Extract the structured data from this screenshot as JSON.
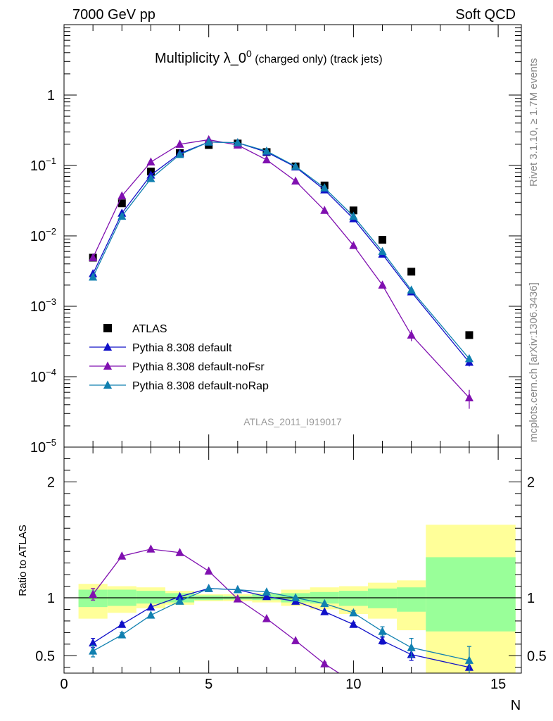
{
  "header": {
    "left": "7000 GeV pp",
    "right": "Soft QCD"
  },
  "side_text": {
    "rivet": "Rivet 3.1.10, ≥ 1.7M events",
    "mcplots": "mcplots.cern.ch [arXiv:1306.3436]"
  },
  "colors": {
    "atlas": "#000000",
    "default": "#1010c8",
    "noFsr": "#8010b0",
    "noRap": "#1080b0",
    "band_inner": "#99ff99",
    "band_outer": "#ffff99"
  },
  "chart_data": [
    {
      "type": "scatter",
      "title_main": "Multiplicity λ_0",
      "title_sup": "0",
      "title_rest": " (charged only) (track jets)",
      "watermark": "ATLAS_2011_I919017",
      "y_scale": "log",
      "ylim": [
        1e-05,
        10
      ],
      "xlim": [
        0,
        15.8
      ],
      "y_ticks": [
        {
          "value": 1e-05,
          "base": "10",
          "exp": "−5"
        },
        {
          "value": 0.0001,
          "base": "10",
          "exp": "−4"
        },
        {
          "value": 0.001,
          "base": "10",
          "exp": "−3"
        },
        {
          "value": 0.01,
          "base": "10",
          "exp": "−2"
        },
        {
          "value": 0.1,
          "base": "10",
          "exp": "−1"
        },
        {
          "value": 1,
          "base": "1",
          "exp": ""
        }
      ],
      "legend_position": "bottom-left",
      "series": [
        {
          "name": "ATLAS",
          "marker": "square",
          "color": "#000000",
          "x": [
            1,
            2,
            3,
            4,
            5,
            6,
            7,
            8,
            9,
            10,
            11,
            12,
            14
          ],
          "y": [
            0.0049,
            0.029,
            0.082,
            0.15,
            0.195,
            0.205,
            0.155,
            0.097,
            0.052,
            0.023,
            0.0088,
            0.0031,
            0.00039
          ]
        },
        {
          "name": "Pythia 8.308 default",
          "marker": "triangle",
          "color": "#1010c8",
          "x": [
            1,
            2,
            3,
            4,
            5,
            6,
            7,
            8,
            9,
            10,
            11,
            12,
            14
          ],
          "y": [
            0.0029,
            0.021,
            0.073,
            0.148,
            0.215,
            0.21,
            0.155,
            0.095,
            0.045,
            0.0175,
            0.0055,
            0.0016,
            0.00016
          ],
          "err": [
            0.0002,
            0.0008,
            0,
            0,
            0,
            0,
            0,
            0,
            0,
            0,
            0.0003,
            0.0001,
            2e-05
          ]
        },
        {
          "name": "Pythia 8.308 default-noFsr",
          "marker": "triangle",
          "color": "#8010b0",
          "x": [
            1,
            2,
            3,
            4,
            5,
            6,
            7,
            8,
            9,
            10,
            11,
            12,
            14
          ],
          "y": [
            0.0049,
            0.037,
            0.112,
            0.2,
            0.232,
            0.195,
            0.12,
            0.06,
            0.023,
            0.0073,
            0.002,
            0.00039,
            5e-05
          ],
          "err": [
            0.0003,
            0,
            0,
            0,
            0,
            0,
            0,
            0,
            0,
            0,
            0,
            7e-05,
            1.5e-05
          ]
        },
        {
          "name": "Pythia 8.308 default-noRap",
          "marker": "triangle",
          "color": "#1080b0",
          "x": [
            1,
            2,
            3,
            4,
            5,
            6,
            7,
            8,
            9,
            10,
            11,
            12,
            14
          ],
          "y": [
            0.0026,
            0.019,
            0.065,
            0.143,
            0.215,
            0.21,
            0.16,
            0.097,
            0.048,
            0.019,
            0.006,
            0.0017,
            0.00018
          ],
          "err": [
            0.0002,
            0.0008,
            0,
            0,
            0,
            0,
            0,
            0,
            0,
            0,
            0.0003,
            0.0001,
            2e-05
          ]
        }
      ]
    },
    {
      "type": "line",
      "ylabel": "Ratio to ATLAS",
      "xlabel": "N",
      "xlim": [
        0,
        15.8
      ],
      "ylim": [
        0.35,
        2.3
      ],
      "x_ticks": [
        0,
        5,
        10,
        15
      ],
      "y_ticks": [
        0.5,
        1,
        2
      ],
      "reference_line": 1,
      "bands": [
        {
          "x0": 0.5,
          "x1": 1.5,
          "inner": [
            0.92,
            1.07
          ],
          "outer": [
            0.82,
            1.12
          ]
        },
        {
          "x0": 1.5,
          "x1": 2.5,
          "inner": [
            0.93,
            1.07
          ],
          "outer": [
            0.87,
            1.1
          ]
        },
        {
          "x0": 2.5,
          "x1": 3.5,
          "inner": [
            0.95,
            1.06
          ],
          "outer": [
            0.91,
            1.09
          ]
        },
        {
          "x0": 3.5,
          "x1": 4.5,
          "inner": [
            0.96,
            1.04
          ],
          "outer": [
            0.94,
            1.06
          ]
        },
        {
          "x0": 4.5,
          "x1": 5.5,
          "inner": [
            0.98,
            1.02
          ],
          "outer": [
            0.97,
            1.03
          ]
        },
        {
          "x0": 5.5,
          "x1": 6.5,
          "inner": [
            0.985,
            1.015
          ],
          "outer": [
            0.97,
            1.03
          ]
        },
        {
          "x0": 6.5,
          "x1": 7.5,
          "inner": [
            0.98,
            1.03
          ],
          "outer": [
            0.96,
            1.04
          ]
        },
        {
          "x0": 7.5,
          "x1": 8.5,
          "inner": [
            0.96,
            1.04
          ],
          "outer": [
            0.93,
            1.07
          ]
        },
        {
          "x0": 8.5,
          "x1": 9.5,
          "inner": [
            0.95,
            1.05
          ],
          "outer": [
            0.9,
            1.09
          ]
        },
        {
          "x0": 9.5,
          "x1": 10.5,
          "inner": [
            0.93,
            1.06
          ],
          "outer": [
            0.86,
            1.1
          ]
        },
        {
          "x0": 10.5,
          "x1": 11.5,
          "inner": [
            0.91,
            1.08
          ],
          "outer": [
            0.82,
            1.13
          ]
        },
        {
          "x0": 11.5,
          "x1": 12.5,
          "inner": [
            0.88,
            1.09
          ],
          "outer": [
            0.72,
            1.15
          ]
        },
        {
          "x0": 12.5,
          "x1": 15.6,
          "inner": [
            0.71,
            1.35
          ],
          "outer": [
            0.2,
            1.63
          ]
        }
      ],
      "series": [
        {
          "name": "Pythia 8.308 default",
          "color": "#1010c8",
          "x": [
            1,
            2,
            3,
            4,
            5,
            6,
            7,
            8,
            9,
            10,
            11,
            12,
            14
          ],
          "y": [
            0.61,
            0.77,
            0.92,
            1.01,
            1.08,
            1.07,
            1.01,
            0.97,
            0.88,
            0.77,
            0.63,
            0.51,
            0.4
          ],
          "err": [
            0.04,
            0.02,
            0,
            0,
            0,
            0,
            0,
            0,
            0,
            0.015,
            0.03,
            0.05,
            0
          ]
        },
        {
          "name": "Pythia 8.308 default-noFsr",
          "color": "#8010b0",
          "x": [
            1,
            2,
            3,
            4,
            5,
            6,
            7,
            8,
            9,
            9.5
          ],
          "y": [
            1.03,
            1.36,
            1.42,
            1.39,
            1.23,
            0.99,
            0.82,
            0.63,
            0.43,
            0.35
          ],
          "err": [
            0.05,
            0,
            0,
            0,
            0,
            0,
            0,
            0,
            0.015,
            0
          ]
        },
        {
          "name": "Pythia 8.308 default-noRap",
          "color": "#1080b0",
          "x": [
            1,
            2,
            3,
            4,
            5,
            6,
            7,
            8,
            9,
            10,
            11,
            12,
            14
          ],
          "y": [
            0.54,
            0.68,
            0.85,
            0.97,
            1.08,
            1.07,
            1.05,
            1.0,
            0.95,
            0.87,
            0.71,
            0.57,
            0.46
          ],
          "err": [
            0.05,
            0.02,
            0,
            0,
            0,
            0,
            0,
            0,
            0,
            0.02,
            0.04,
            0.08,
            0.12
          ]
        }
      ]
    }
  ]
}
